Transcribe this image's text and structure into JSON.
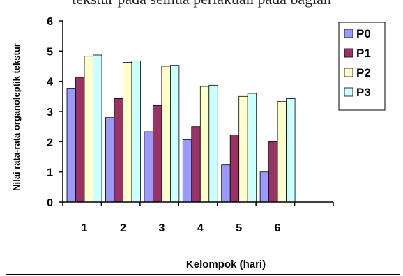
{
  "caption": "tekstur pada semua perlakuan pada bagian",
  "chart_data": {
    "type": "bar",
    "title": "",
    "xlabel": "Kelompok (hari)",
    "ylabel": "Nilai rata-rata organoleptik tekstur",
    "categories": [
      "1",
      "2",
      "3",
      "4",
      "5",
      "6"
    ],
    "ylim": [
      0,
      6
    ],
    "yticks": [
      0,
      1,
      2,
      3,
      4,
      5,
      6
    ],
    "grid": false,
    "legend_position": "top-right",
    "series": [
      {
        "name": "P0",
        "color": "#9999ff",
        "values": [
          3.77,
          2.8,
          2.33,
          2.07,
          1.23,
          1.0
        ]
      },
      {
        "name": "P1",
        "color": "#993366",
        "values": [
          4.13,
          3.43,
          3.2,
          2.5,
          2.23,
          2.0
        ]
      },
      {
        "name": "P2",
        "color": "#ffffcc",
        "values": [
          4.83,
          4.63,
          4.5,
          3.83,
          3.5,
          3.33
        ]
      },
      {
        "name": "P3",
        "color": "#ccffff",
        "values": [
          4.87,
          4.67,
          4.53,
          3.87,
          3.6,
          3.43
        ]
      }
    ]
  }
}
